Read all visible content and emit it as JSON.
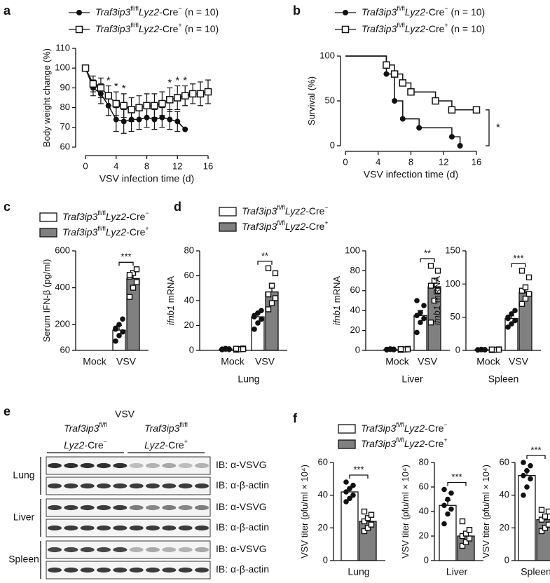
{
  "chart_data": [
    {
      "type": "line",
      "panel": "a",
      "ylabel": "Body weight change (%)",
      "xlabel": "VSV infection time (d)",
      "x": [
        0,
        1,
        2,
        3,
        4,
        5,
        6,
        7,
        8,
        9,
        10,
        11,
        12,
        13,
        14,
        15,
        16
      ],
      "xlim": [
        0,
        16
      ],
      "xticks": [
        0,
        4,
        8,
        12,
        16
      ],
      "ylim": [
        60,
        110
      ],
      "yticks": [
        60,
        70,
        80,
        90,
        100,
        110
      ],
      "series": [
        {
          "name": "Traf3ip3fl/flLyz2-Cre− (n = 10)",
          "color": "#111111",
          "marker": "circle",
          "values": [
            100,
            90,
            87,
            81,
            74,
            73,
            74,
            74,
            75,
            74,
            75,
            74,
            73,
            69,
            null,
            null,
            null
          ],
          "errors": [
            0,
            4,
            5,
            5,
            6,
            6,
            6,
            5,
            5,
            5,
            5,
            5,
            5,
            0,
            null,
            null,
            null
          ]
        },
        {
          "name": "Traf3ip3fl/flLyz2-Cre+ (n = 10)",
          "color": "#111111",
          "marker": "square",
          "values": [
            100,
            92,
            90,
            86,
            82,
            81,
            79,
            80,
            81,
            81,
            82,
            84,
            85,
            86,
            87,
            87,
            88
          ],
          "errors": [
            0,
            4,
            5,
            5,
            6,
            6,
            6,
            6,
            6,
            6,
            6,
            6,
            6,
            5,
            5,
            6,
            6
          ]
        }
      ],
      "annotations": [
        {
          "text": "*",
          "x": 3
        },
        {
          "text": "*",
          "x": 4
        },
        {
          "text": "*",
          "x": 5
        },
        {
          "text": "*",
          "x": 11
        },
        {
          "text": "*",
          "x": 12
        },
        {
          "text": "*",
          "x": 13
        }
      ]
    },
    {
      "type": "step",
      "panel": "b",
      "ylabel": "Survival (%)",
      "xlabel": "VSV infection time (d)",
      "xlim": [
        0,
        16
      ],
      "xticks": [
        0,
        4,
        8,
        12,
        16
      ],
      "ylim": [
        0,
        100
      ],
      "yticks": [
        0,
        50,
        100
      ],
      "series": [
        {
          "name": "Traf3ip3fl/flLyz2-Cre− (n = 10)",
          "color": "#111111",
          "marker": "circle",
          "x": [
            0,
            5,
            6,
            7,
            9,
            13,
            14
          ],
          "values": [
            100,
            80,
            50,
            30,
            20,
            10,
            0
          ]
        },
        {
          "name": "Traf3ip3fl/flLyz2-Cre+ (n = 10)",
          "color": "#111111",
          "marker": "square",
          "x": [
            0,
            5,
            6,
            7,
            8,
            11,
            13,
            16
          ],
          "values": [
            100,
            90,
            80,
            70,
            60,
            50,
            40,
            40
          ]
        }
      ],
      "significance": "*"
    },
    {
      "type": "bar",
      "panel": "c",
      "ylabel": "Serum IFN-β (pg/ml)",
      "categories": [
        "Mock",
        "VSV"
      ],
      "ylim": [
        60,
        600
      ],
      "yticks": [
        60,
        200,
        400,
        600
      ],
      "significance": "***",
      "series": [
        {
          "name": "Traf3ip3fl/flLyz2-Cre−",
          "color": "#ffffff",
          "values": [
            null,
            170
          ],
          "errors": [
            null,
            25
          ],
          "points": [
            [],
            [
              110,
              140,
              160,
              180,
              200,
              230,
              175
            ]
          ]
        },
        {
          "name": "Traf3ip3fl/flLyz2-Cre+",
          "color": "#808080",
          "values": [
            null,
            450
          ],
          "errors": [
            null,
            40
          ],
          "points": [
            [],
            [
              350,
              400,
              430,
              460,
              480,
              500,
              470
            ]
          ]
        }
      ]
    },
    {
      "type": "bar",
      "panel": "d",
      "ylabel": "ifnb1 mRNA",
      "xlabel": "Lung",
      "categories": [
        "Mock",
        "VSV"
      ],
      "ylim": [
        0,
        80
      ],
      "yticks": [
        0,
        20,
        40,
        60,
        80
      ],
      "significance": "**",
      "series": [
        {
          "name": "Traf3ip3fl/flLyz2-Cre−",
          "color": "#ffffff",
          "values": [
            1,
            27
          ],
          "errors": [
            0.3,
            3
          ],
          "points": [
            [
              0.5,
              1,
              1.2,
              0.8,
              1.5,
              0.7,
              1
            ],
            [
              17,
              22,
              25,
              27,
              30,
              32,
              28
            ]
          ]
        },
        {
          "name": "Traf3ip3fl/flLyz2-Cre+",
          "color": "#808080",
          "values": [
            1,
            47
          ],
          "errors": [
            0.3,
            6
          ],
          "points": [
            [
              0.5,
              1,
              1.5,
              1.2,
              0.8,
              1,
              1.3
            ],
            [
              33,
              38,
              42,
              45,
              52,
              62,
              66
            ]
          ]
        }
      ]
    },
    {
      "type": "bar",
      "ylabel": "ifnb1 mRNA",
      "xlabel": "Liver",
      "categories": [
        "Mock",
        "VSV"
      ],
      "ylim": [
        0,
        100
      ],
      "yticks": [
        0,
        20,
        40,
        60,
        80,
        100
      ],
      "significance": "**",
      "series": [
        {
          "color": "#ffffff",
          "values": [
            1,
            35
          ],
          "errors": [
            0.3,
            5
          ],
          "points": [
            [
              0.5,
              1,
              1.2,
              0.8,
              1.5,
              0.7,
              1
            ],
            [
              18,
              28,
              32,
              35,
              38,
              45,
              50
            ]
          ]
        },
        {
          "color": "#808080",
          "values": [
            1,
            64
          ],
          "errors": [
            0.3,
            8
          ],
          "points": [
            [
              0.5,
              1,
              1.5,
              1.2,
              0.8,
              1,
              1.3
            ],
            [
              28,
              50,
              60,
              65,
              70,
              80,
              85
            ]
          ]
        }
      ]
    },
    {
      "type": "bar",
      "ylabel": "ifnb1 mRNA",
      "xlabel": "Spleen",
      "categories": [
        "Mock",
        "VSV"
      ],
      "ylim": [
        0,
        150
      ],
      "yticks": [
        0,
        50,
        100,
        150
      ],
      "significance": "***",
      "series": [
        {
          "color": "#ffffff",
          "values": [
            1,
            48
          ],
          "errors": [
            0.5,
            4
          ],
          "points": [
            [
              0.5,
              1,
              1.2,
              0.8,
              1.5,
              0.7,
              1
            ],
            [
              35,
              40,
              45,
              50,
              55,
              60,
              48
            ]
          ]
        },
        {
          "color": "#808080",
          "values": [
            1,
            87
          ],
          "errors": [
            0.5,
            7
          ],
          "points": [
            [
              0.5,
              1,
              1.5,
              1.2,
              0.8,
              1,
              1.3
            ],
            [
              70,
              78,
              85,
              90,
              95,
              110,
              120
            ]
          ]
        }
      ]
    },
    {
      "type": "bar",
      "panel": "f",
      "ylabel": "VSV titer (pfu/ml × 10⁴)",
      "categories": [
        "Lung"
      ],
      "ylim": [
        0,
        60
      ],
      "yticks": [
        0,
        20,
        40,
        60
      ],
      "significance": "***",
      "series": [
        {
          "name": "Traf3ip3fl/flLyz2-Cre−",
          "color": "#ffffff",
          "values": [
            42
          ],
          "errors": [
            2
          ],
          "points": [
            [
              36,
              38,
              40,
              42,
              44,
              46,
              48
            ]
          ]
        },
        {
          "name": "Traf3ip3fl/flLyz2-Cre+",
          "color": "#808080",
          "values": [
            24
          ],
          "errors": [
            2
          ],
          "points": [
            [
              18,
              20,
              22,
              24,
              26,
              28,
              30
            ]
          ]
        }
      ]
    },
    {
      "type": "bar",
      "ylabel": "VSV titer (pfu/ml × 10⁴)",
      "categories": [
        "Liver"
      ],
      "ylim": [
        0,
        80
      ],
      "yticks": [
        0,
        20,
        40,
        60,
        80
      ],
      "significance": "***",
      "series": [
        {
          "color": "#ffffff",
          "values": [
            45
          ],
          "errors": [
            4
          ],
          "points": [
            [
              30,
              38,
              42,
              45,
              50,
              55,
              58
            ]
          ]
        },
        {
          "color": "#808080",
          "values": [
            20
          ],
          "errors": [
            3
          ],
          "points": [
            [
              12,
              15,
              18,
              20,
              22,
              25,
              32
            ]
          ]
        }
      ]
    },
    {
      "type": "bar",
      "ylabel": "VSV titer (pfu/ml × 10⁴)",
      "categories": [
        "Spleen"
      ],
      "ylim": [
        0,
        60
      ],
      "yticks": [
        0,
        20,
        40,
        60
      ],
      "significance": "***",
      "series": [
        {
          "color": "#ffffff",
          "values": [
            52
          ],
          "errors": [
            3
          ],
          "points": [
            [
              40,
              45,
              50,
              52,
              55,
              58,
              60
            ]
          ]
        },
        {
          "color": "#808080",
          "values": [
            25
          ],
          "errors": [
            2
          ],
          "points": [
            [
              18,
              20,
              22,
              25,
              27,
              30,
              31
            ]
          ]
        }
      ]
    }
  ],
  "blot": {
    "panel": "e",
    "treatment": "VSV",
    "groups": [
      [
        "Traf3ip3fl/fl",
        "Lyz2-Cre−"
      ],
      [
        "Traf3ip3fl/fl",
        "Lyz2-Cre+"
      ]
    ],
    "tissues": [
      {
        "name": "Lung",
        "rows": [
          "IB: α-VSVG",
          "IB: α-β-actin"
        ]
      },
      {
        "name": "Liver",
        "rows": [
          "IB: α-VSVG",
          "IB: α-β-actin"
        ]
      },
      {
        "name": "Spleen",
        "rows": [
          "IB: α-VSVG",
          "IB: α-β-actin"
        ]
      }
    ]
  }
}
